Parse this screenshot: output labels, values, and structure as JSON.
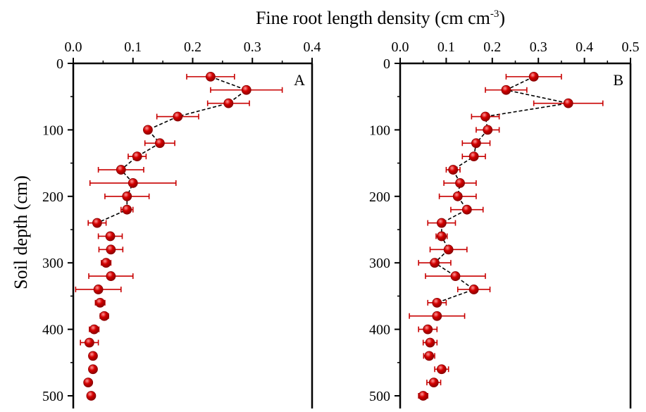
{
  "figure": {
    "top_title": "Fine root length density (cm cm",
    "top_title_sup": "-3",
    "top_title_end": ")",
    "ylabel": "Soil depth (cm)"
  },
  "colors": {
    "marker": "#d40000",
    "marker_highlight": "#ff9a9a",
    "errorbar": "#c80000",
    "line": "#000000"
  },
  "chart_data": [
    {
      "type": "scatter",
      "panel_label": "A",
      "x_label_position": "top",
      "y_inverted": true,
      "xlim": [
        0,
        0.4
      ],
      "ylim": [
        0,
        500
      ],
      "x_ticks": [
        "0.0",
        "0.1",
        "0.2",
        "0.3",
        "0.4"
      ],
      "y_ticks": [
        "0",
        "100",
        "200",
        "300",
        "400",
        "500"
      ],
      "connected_range_depth": [
        20,
        240
      ],
      "points": [
        {
          "depth": 20,
          "value": 0.23,
          "err": 0.04
        },
        {
          "depth": 40,
          "value": 0.29,
          "err": 0.06
        },
        {
          "depth": 60,
          "value": 0.26,
          "err": 0.035
        },
        {
          "depth": 80,
          "value": 0.175,
          "err": 0.035
        },
        {
          "depth": 100,
          "value": 0.125,
          "err": 0.0
        },
        {
          "depth": 120,
          "value": 0.145,
          "err": 0.025
        },
        {
          "depth": 140,
          "value": 0.107,
          "err": 0.015
        },
        {
          "depth": 160,
          "value": 0.08,
          "err": 0.038
        },
        {
          "depth": 180,
          "value": 0.1,
          "err": 0.072
        },
        {
          "depth": 200,
          "value": 0.09,
          "err": 0.037
        },
        {
          "depth": 220,
          "value": 0.09,
          "err": 0.01
        },
        {
          "depth": 240,
          "value": 0.04,
          "err": 0.015
        },
        {
          "depth": 260,
          "value": 0.062,
          "err": 0.02
        },
        {
          "depth": 280,
          "value": 0.063,
          "err": 0.02
        },
        {
          "depth": 300,
          "value": 0.055,
          "err": 0.008
        },
        {
          "depth": 320,
          "value": 0.063,
          "err": 0.037
        },
        {
          "depth": 340,
          "value": 0.042,
          "err": 0.038
        },
        {
          "depth": 360,
          "value": 0.045,
          "err": 0.008
        },
        {
          "depth": 380,
          "value": 0.052,
          "err": 0.007
        },
        {
          "depth": 400,
          "value": 0.035,
          "err": 0.008
        },
        {
          "depth": 420,
          "value": 0.027,
          "err": 0.015
        },
        {
          "depth": 440,
          "value": 0.033,
          "err": 0.0
        },
        {
          "depth": 460,
          "value": 0.033,
          "err": 0.0
        },
        {
          "depth": 480,
          "value": 0.025,
          "err": 0.0
        },
        {
          "depth": 500,
          "value": 0.03,
          "err": 0.0
        }
      ]
    },
    {
      "type": "scatter",
      "panel_label": "B",
      "x_label_position": "top",
      "y_inverted": true,
      "xlim": [
        0,
        0.5
      ],
      "ylim": [
        0,
        500
      ],
      "x_ticks": [
        "0.0",
        "0.1",
        "0.2",
        "0.3",
        "0.4",
        "0.5"
      ],
      "y_ticks": [
        "0",
        "100",
        "200",
        "300",
        "400",
        "500"
      ],
      "connected_range_depth": [
        20,
        360
      ],
      "points": [
        {
          "depth": 20,
          "value": 0.29,
          "err": 0.06
        },
        {
          "depth": 40,
          "value": 0.23,
          "err": 0.045
        },
        {
          "depth": 60,
          "value": 0.365,
          "err": 0.075
        },
        {
          "depth": 80,
          "value": 0.185,
          "err": 0.03
        },
        {
          "depth": 100,
          "value": 0.19,
          "err": 0.025
        },
        {
          "depth": 120,
          "value": 0.165,
          "err": 0.03
        },
        {
          "depth": 140,
          "value": 0.16,
          "err": 0.025
        },
        {
          "depth": 160,
          "value": 0.115,
          "err": 0.015
        },
        {
          "depth": 180,
          "value": 0.13,
          "err": 0.035
        },
        {
          "depth": 200,
          "value": 0.125,
          "err": 0.04
        },
        {
          "depth": 220,
          "value": 0.145,
          "err": 0.035
        },
        {
          "depth": 240,
          "value": 0.09,
          "err": 0.03
        },
        {
          "depth": 260,
          "value": 0.09,
          "err": 0.012
        },
        {
          "depth": 280,
          "value": 0.105,
          "err": 0.04
        },
        {
          "depth": 300,
          "value": 0.075,
          "err": 0.035
        },
        {
          "depth": 320,
          "value": 0.12,
          "err": 0.065
        },
        {
          "depth": 340,
          "value": 0.16,
          "err": 0.035
        },
        {
          "depth": 360,
          "value": 0.08,
          "err": 0.02
        },
        {
          "depth": 380,
          "value": 0.08,
          "err": 0.06
        },
        {
          "depth": 400,
          "value": 0.06,
          "err": 0.02
        },
        {
          "depth": 420,
          "value": 0.065,
          "err": 0.015
        },
        {
          "depth": 440,
          "value": 0.063,
          "err": 0.012
        },
        {
          "depth": 460,
          "value": 0.09,
          "err": 0.015
        },
        {
          "depth": 480,
          "value": 0.073,
          "err": 0.015
        },
        {
          "depth": 500,
          "value": 0.05,
          "err": 0.01
        }
      ]
    }
  ]
}
